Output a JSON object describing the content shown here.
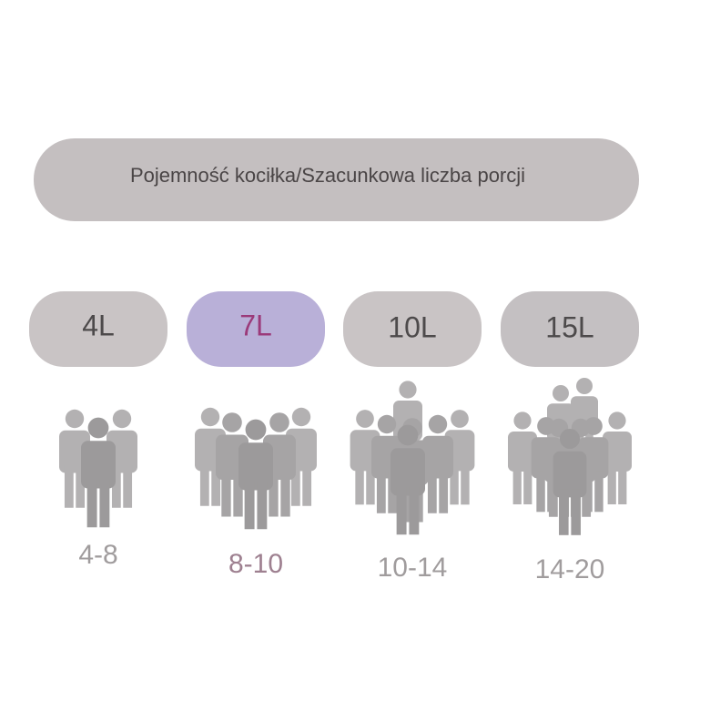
{
  "header": {
    "title": "Pojemność kociłka/Szacunkowa liczba porcji"
  },
  "options": [
    {
      "capacity": "4L",
      "servings": "4-8"
    },
    {
      "capacity": "7L",
      "servings": "8-10"
    },
    {
      "capacity": "10L",
      "servings": "10-14"
    },
    {
      "capacity": "15L",
      "servings": "14-20"
    }
  ]
}
